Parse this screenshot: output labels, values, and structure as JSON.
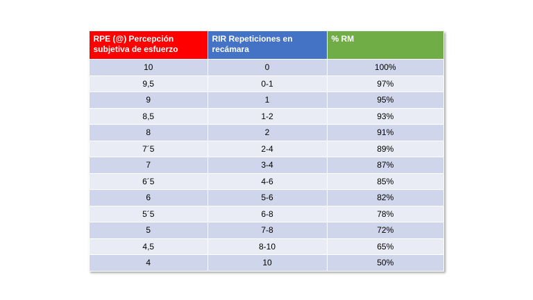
{
  "table": {
    "header": [
      "RPE (@) Percepción subjetiva de esfuerzo",
      "RIR Repeticiones en recámara",
      "% RM"
    ],
    "rows": [
      [
        "10",
        "0",
        "100%"
      ],
      [
        "9,5",
        "0-1",
        "97%"
      ],
      [
        "9",
        "1",
        "95%"
      ],
      [
        "8,5",
        "1-2",
        "93%"
      ],
      [
        "8",
        "2",
        "91%"
      ],
      [
        "7´5",
        "2-4",
        "89%"
      ],
      [
        "7",
        "3-4",
        "87%"
      ],
      [
        "6´5",
        "4-6",
        "85%"
      ],
      [
        "6",
        "5-6",
        "82%"
      ],
      [
        "5´5",
        "6-8",
        "78%"
      ],
      [
        "5",
        "7-8",
        "72%"
      ],
      [
        "4,5",
        "8-10",
        "65%"
      ],
      [
        "4",
        "10",
        "50%"
      ]
    ]
  }
}
